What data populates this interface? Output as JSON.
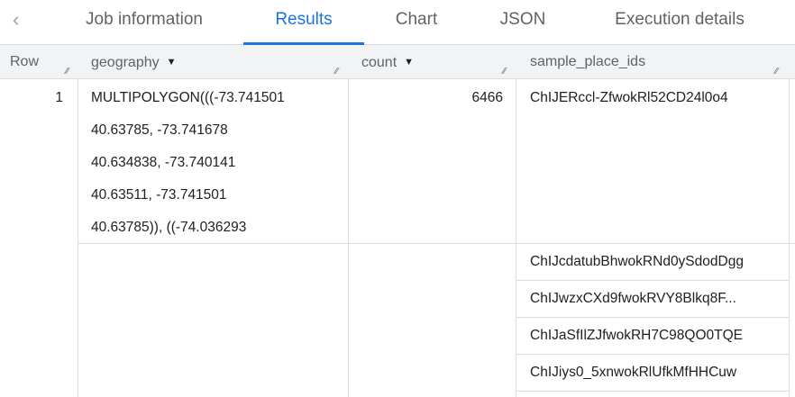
{
  "tabs": {
    "back_icon": "chevron-left-icon",
    "items": [
      "Job information",
      "Results",
      "Chart",
      "JSON",
      "Execution details"
    ],
    "active": "Results"
  },
  "columns": {
    "row": "Row",
    "geography": "geography",
    "count": "count",
    "sample_place_ids": "sample_place_ids"
  },
  "rows": [
    {
      "row": "1",
      "geography_lines": [
        "MULTIPOLYGON(((-73.741501",
        "40.63785, -73.741678",
        "40.634838, -73.740141",
        "40.63511, -73.741501",
        "40.63785)), ((-74.036293"
      ],
      "count": "6466",
      "sample_place_ids": [
        "ChIJERccl-ZfwokRl52CD24l0o4",
        "ChIJcdatubBhwokRNd0ySdodDgg",
        "ChIJwzxCXd9fwokRVY8Blkq8F...",
        "ChIJaSfIlZJfwokRH7C98QO0TQE",
        "ChIJiys0_5xnwokRlUfkMfHHCuw"
      ]
    }
  ],
  "colors": {
    "accent": "#1a73e8",
    "header_bg": "#f1f3f4",
    "border": "#dadce0"
  }
}
